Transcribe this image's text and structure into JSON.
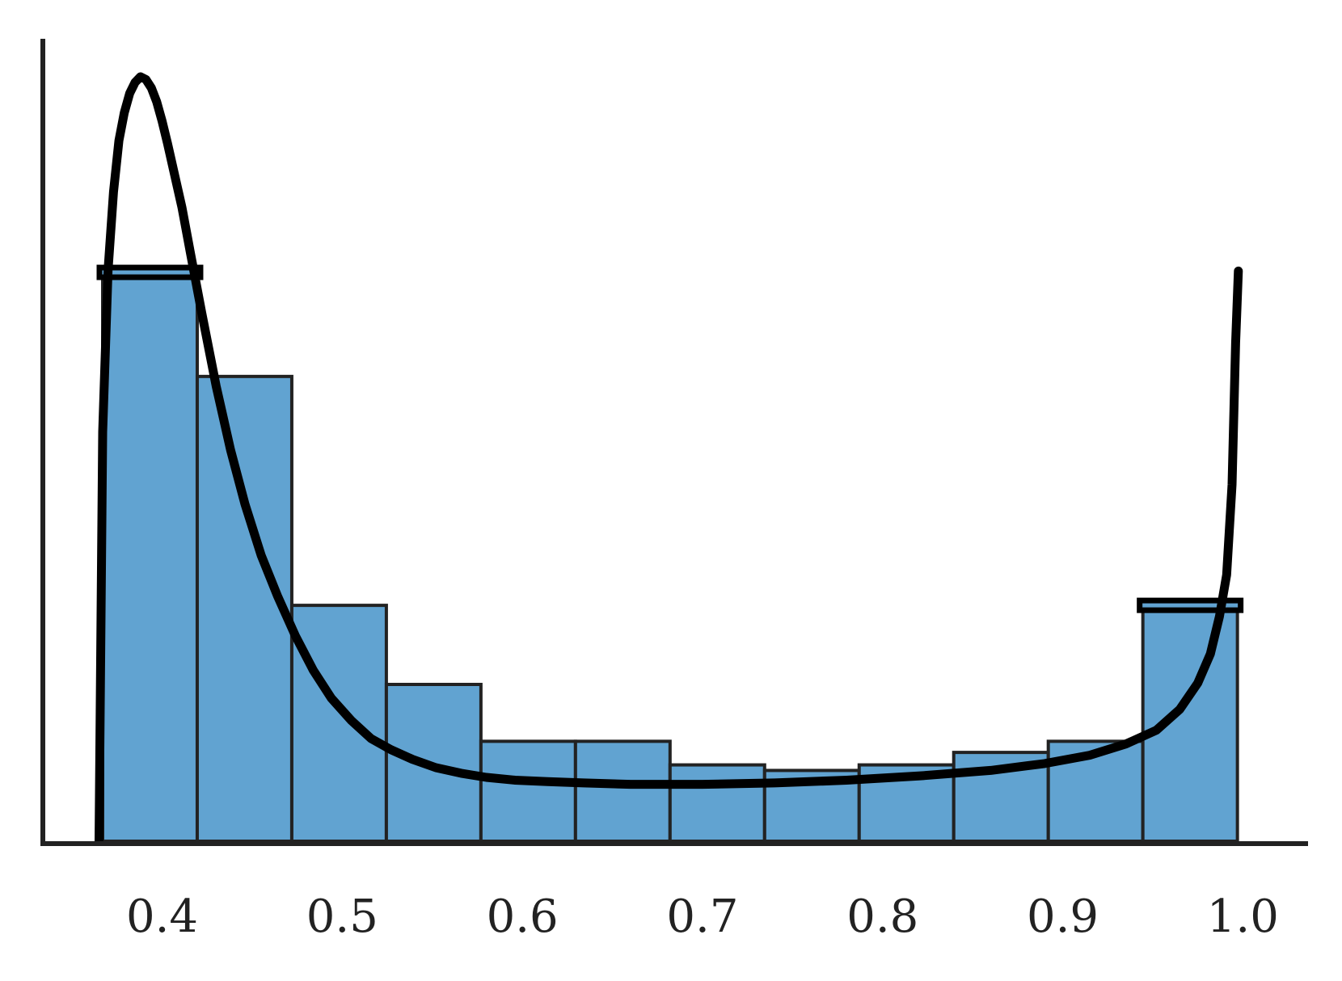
{
  "chart_data": {
    "type": "bar",
    "subtype": "histogram with density curve",
    "title": "",
    "xlabel": "",
    "ylabel": "",
    "xlim": [
      0.335,
      1.035
    ],
    "ylim": [
      0,
      5.3
    ],
    "x_ticks": [
      0.4,
      0.5,
      0.6,
      0.7,
      0.8,
      0.9,
      1.0
    ],
    "x_tick_labels": [
      "0.4",
      "0.5",
      "0.6",
      "0.7",
      "0.8",
      "0.9",
      "1.0"
    ],
    "y_ticks_visible": false,
    "grid": false,
    "legend": "none",
    "bins": [
      {
        "x0": 0.367,
        "x1": 0.4195,
        "count": 4.1
      },
      {
        "x0": 0.4195,
        "x1": 0.472,
        "count": 3.35
      },
      {
        "x0": 0.472,
        "x1": 0.5245,
        "count": 1.7
      },
      {
        "x0": 0.5245,
        "x1": 0.577,
        "count": 1.13
      },
      {
        "x0": 0.577,
        "x1": 0.6295,
        "count": 0.72
      },
      {
        "x0": 0.6295,
        "x1": 0.682,
        "count": 0.72
      },
      {
        "x0": 0.682,
        "x1": 0.7345,
        "count": 0.55
      },
      {
        "x0": 0.7345,
        "x1": 0.787,
        "count": 0.51
      },
      {
        "x0": 0.787,
        "x1": 0.8395,
        "count": 0.55
      },
      {
        "x0": 0.8395,
        "x1": 0.892,
        "count": 0.64
      },
      {
        "x0": 0.892,
        "x1": 0.9445,
        "count": 0.72
      },
      {
        "x0": 0.9445,
        "x1": 0.997,
        "count": 1.7
      }
    ],
    "highlighted_bins": [
      0,
      11
    ],
    "density_curve": {
      "x": [
        0.365,
        0.367,
        0.37,
        0.373,
        0.376,
        0.379,
        0.382,
        0.385,
        0.388,
        0.391,
        0.394,
        0.397,
        0.4,
        0.403,
        0.407,
        0.411,
        0.416,
        0.422,
        0.43,
        0.438,
        0.446,
        0.455,
        0.464,
        0.474,
        0.484,
        0.494,
        0.505,
        0.516,
        0.527,
        0.539,
        0.552,
        0.566,
        0.58,
        0.596,
        0.614,
        0.634,
        0.66,
        0.7,
        0.74,
        0.78,
        0.82,
        0.86,
        0.89,
        0.915,
        0.935,
        0.952,
        0.965,
        0.975,
        0.982,
        0.987,
        0.991,
        0.994,
        0.996,
        0.9975
      ],
      "y": [
        0.0,
        2.95,
        4.12,
        4.68,
        5.05,
        5.25,
        5.39,
        5.47,
        5.51,
        5.49,
        5.43,
        5.33,
        5.19,
        5.03,
        4.8,
        4.57,
        4.22,
        3.81,
        3.28,
        2.82,
        2.43,
        2.06,
        1.77,
        1.48,
        1.23,
        1.03,
        0.87,
        0.74,
        0.66,
        0.59,
        0.53,
        0.49,
        0.46,
        0.44,
        0.43,
        0.42,
        0.41,
        0.41,
        0.42,
        0.44,
        0.47,
        0.51,
        0.56,
        0.62,
        0.7,
        0.8,
        0.95,
        1.14,
        1.35,
        1.62,
        1.92,
        2.57,
        3.59,
        4.11
      ]
    },
    "colors": {
      "bar_fill": "#61A3D1",
      "bar_edge": "#222222",
      "curve": "#000000",
      "axis": "#222222"
    }
  }
}
